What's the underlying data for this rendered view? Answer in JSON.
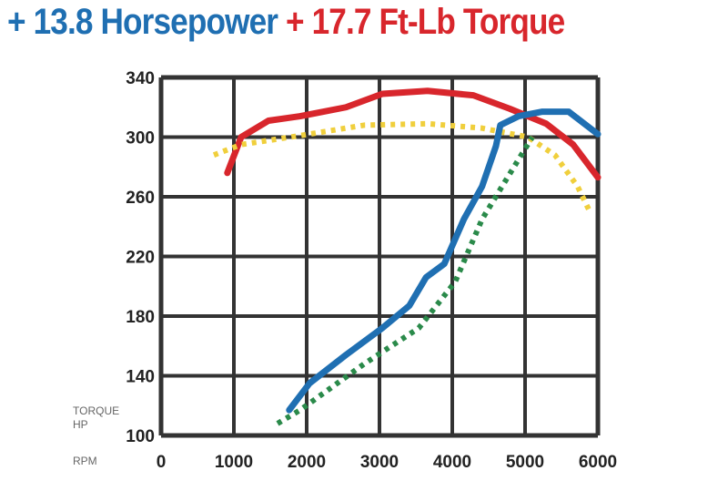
{
  "title": {
    "hp_text": "+ 13.8 Horsepower",
    "torque_text": "+ 17.7 Ft-Lb Torque",
    "hp_color": "#1f6fb2",
    "torque_color": "#d8262c"
  },
  "chart_data": {
    "type": "line",
    "xlim": [
      0,
      6000
    ],
    "ylim": [
      100,
      340
    ],
    "x_ticks": [
      "0",
      "1000",
      "2000",
      "3000",
      "4000",
      "5000",
      "6000"
    ],
    "y_ticks": [
      "340",
      "300",
      "260",
      "220",
      "180",
      "140",
      "100"
    ],
    "axis_labels": {
      "torque": "TORQUE",
      "hp": "HP",
      "rpm": "RPM"
    },
    "grid": true,
    "series": [
      {
        "color": "#d8262c",
        "style": "solid",
        "points": [
          [
            910,
            276
          ],
          [
            1100,
            300
          ],
          [
            1475,
            311
          ],
          [
            1910,
            314
          ],
          [
            2540,
            320
          ],
          [
            3040,
            329
          ],
          [
            3660,
            331
          ],
          [
            4290,
            328
          ],
          [
            4790,
            319
          ],
          [
            5290,
            309
          ],
          [
            5660,
            295
          ],
          [
            6000,
            273
          ]
        ]
      },
      {
        "color": "#f0cf3c",
        "style": "dotted",
        "points": [
          [
            725,
            288
          ],
          [
            1100,
            295
          ],
          [
            1910,
            301
          ],
          [
            2790,
            308
          ],
          [
            3660,
            309
          ],
          [
            4410,
            306
          ],
          [
            5040,
            300
          ],
          [
            5410,
            288
          ],
          [
            5720,
            267
          ],
          [
            5890,
            250
          ]
        ]
      },
      {
        "color": "#1f6fb2",
        "style": "solid",
        "points": [
          [
            1760,
            117
          ],
          [
            2040,
            135
          ],
          [
            2540,
            154
          ],
          [
            3040,
            172
          ],
          [
            3410,
            187
          ],
          [
            3640,
            206
          ],
          [
            3890,
            215
          ],
          [
            4160,
            245
          ],
          [
            4410,
            267
          ],
          [
            4600,
            294
          ],
          [
            4660,
            308
          ],
          [
            4910,
            314
          ],
          [
            5230,
            317
          ],
          [
            5600,
            317
          ],
          [
            6000,
            302
          ]
        ]
      },
      {
        "color": "#2a8a4a",
        "style": "dotted",
        "points": [
          [
            1600,
            108
          ],
          [
            1910,
            117
          ],
          [
            2790,
            148
          ],
          [
            3540,
            172
          ],
          [
            4040,
            203
          ],
          [
            4410,
            245
          ],
          [
            4910,
            285
          ],
          [
            5100,
            300
          ]
        ]
      }
    ]
  }
}
